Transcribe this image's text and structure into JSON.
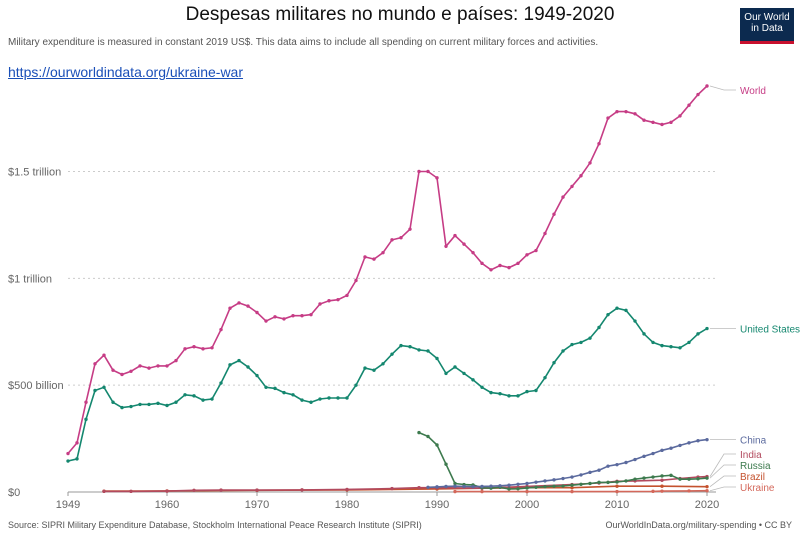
{
  "title": "Despesas militares no mundo e países: 1949-2020",
  "subtitle": "Military expenditure is measured in constant 2019 US$. This data aims to include all spending on current military forces and activities.",
  "link": "https://ourworldindata.org/ukraine-war",
  "logo": {
    "line1": "Our World",
    "line2": "in Data"
  },
  "source": "Source: SIPRI Military Expenditure Database, Stockholm International Peace Research Institute (SIPRI)",
  "site": "OurWorldInData.org/military-spending • CC BY",
  "colors": {
    "World": "#c63c85",
    "United States": "#14876f",
    "China": "#5b6a9e",
    "India": "#b24a5e",
    "Russia": "#3d7a4e",
    "Brazil": "#c4522e",
    "Ukraine": "#d4685b"
  },
  "chart_data": {
    "type": "line",
    "title": "Despesas militares no mundo e países: 1949-2020",
    "xlim": [
      1949,
      2020
    ],
    "ylim": [
      0,
      1900
    ],
    "y_unit": "billion constant 2019 US$",
    "x_ticks": [
      {
        "value": 1949,
        "label": "1949"
      },
      {
        "value": 1960,
        "label": "1960"
      },
      {
        "value": 1970,
        "label": "1970"
      },
      {
        "value": 1980,
        "label": "1980"
      },
      {
        "value": 1990,
        "label": "1990"
      },
      {
        "value": 2000,
        "label": "2000"
      },
      {
        "value": 2010,
        "label": "2010"
      },
      {
        "value": 2020,
        "label": "2020"
      }
    ],
    "y_ticks": [
      {
        "value": 0,
        "label": "$0"
      },
      {
        "value": 500,
        "label": "$500 billion"
      },
      {
        "value": 1000,
        "label": "$1 trillion"
      },
      {
        "value": 1500,
        "label": "$1.5 trillion"
      }
    ],
    "grid": "horizontal dotted",
    "series": [
      {
        "name": "World",
        "points": [
          [
            1949,
            180
          ],
          [
            1950,
            230
          ],
          [
            1951,
            420
          ],
          [
            1952,
            600
          ],
          [
            1953,
            640
          ],
          [
            1954,
            570
          ],
          [
            1955,
            550
          ],
          [
            1956,
            565
          ],
          [
            1957,
            590
          ],
          [
            1958,
            580
          ],
          [
            1959,
            590
          ],
          [
            1960,
            590
          ],
          [
            1961,
            615
          ],
          [
            1962,
            670
          ],
          [
            1963,
            680
          ],
          [
            1964,
            670
          ],
          [
            1965,
            675
          ],
          [
            1966,
            760
          ],
          [
            1967,
            860
          ],
          [
            1968,
            885
          ],
          [
            1969,
            870
          ],
          [
            1970,
            840
          ],
          [
            1971,
            800
          ],
          [
            1972,
            820
          ],
          [
            1973,
            810
          ],
          [
            1974,
            825
          ],
          [
            1975,
            825
          ],
          [
            1976,
            830
          ],
          [
            1977,
            880
          ],
          [
            1978,
            895
          ],
          [
            1979,
            900
          ],
          [
            1980,
            920
          ],
          [
            1981,
            990
          ],
          [
            1982,
            1100
          ],
          [
            1983,
            1090
          ],
          [
            1984,
            1120
          ],
          [
            1985,
            1180
          ],
          [
            1986,
            1190
          ],
          [
            1987,
            1230
          ],
          [
            1988,
            1500
          ],
          [
            1989,
            1500
          ],
          [
            1990,
            1470
          ],
          [
            1991,
            1150
          ],
          [
            1992,
            1200
          ],
          [
            1993,
            1160
          ],
          [
            1994,
            1120
          ],
          [
            1995,
            1070
          ],
          [
            1996,
            1040
          ],
          [
            1997,
            1060
          ],
          [
            1998,
            1050
          ],
          [
            1999,
            1070
          ],
          [
            2000,
            1110
          ],
          [
            2001,
            1130
          ],
          [
            2002,
            1210
          ],
          [
            2003,
            1300
          ],
          [
            2004,
            1380
          ],
          [
            2005,
            1430
          ],
          [
            2006,
            1480
          ],
          [
            2007,
            1540
          ],
          [
            2008,
            1630
          ],
          [
            2009,
            1750
          ],
          [
            2010,
            1780
          ],
          [
            2011,
            1780
          ],
          [
            2012,
            1770
          ],
          [
            2013,
            1740
          ],
          [
            2014,
            1730
          ],
          [
            2015,
            1720
          ],
          [
            2016,
            1730
          ],
          [
            2017,
            1760
          ],
          [
            2018,
            1810
          ],
          [
            2019,
            1860
          ],
          [
            2020,
            1900
          ]
        ]
      },
      {
        "name": "United States",
        "points": [
          [
            1949,
            145
          ],
          [
            1950,
            155
          ],
          [
            1951,
            340
          ],
          [
            1952,
            475
          ],
          [
            1953,
            490
          ],
          [
            1954,
            420
          ],
          [
            1955,
            395
          ],
          [
            1956,
            400
          ],
          [
            1957,
            410
          ],
          [
            1958,
            410
          ],
          [
            1959,
            415
          ],
          [
            1960,
            405
          ],
          [
            1961,
            420
          ],
          [
            1962,
            455
          ],
          [
            1963,
            450
          ],
          [
            1964,
            430
          ],
          [
            1965,
            435
          ],
          [
            1966,
            510
          ],
          [
            1967,
            595
          ],
          [
            1968,
            615
          ],
          [
            1969,
            585
          ],
          [
            1970,
            545
          ],
          [
            1971,
            490
          ],
          [
            1972,
            485
          ],
          [
            1973,
            465
          ],
          [
            1974,
            455
          ],
          [
            1975,
            430
          ],
          [
            1976,
            420
          ],
          [
            1977,
            435
          ],
          [
            1978,
            440
          ],
          [
            1979,
            440
          ],
          [
            1980,
            440
          ],
          [
            1981,
            500
          ],
          [
            1982,
            580
          ],
          [
            1983,
            570
          ],
          [
            1984,
            600
          ],
          [
            1985,
            645
          ],
          [
            1986,
            685
          ],
          [
            1987,
            680
          ],
          [
            1988,
            665
          ],
          [
            1989,
            660
          ],
          [
            1990,
            625
          ],
          [
            1991,
            555
          ],
          [
            1992,
            585
          ],
          [
            1993,
            555
          ],
          [
            1994,
            525
          ],
          [
            1995,
            490
          ],
          [
            1996,
            465
          ],
          [
            1997,
            460
          ],
          [
            1998,
            450
          ],
          [
            1999,
            450
          ],
          [
            2000,
            470
          ],
          [
            2001,
            475
          ],
          [
            2002,
            535
          ],
          [
            2003,
            605
          ],
          [
            2004,
            660
          ],
          [
            2005,
            690
          ],
          [
            2006,
            700
          ],
          [
            2007,
            720
          ],
          [
            2008,
            770
          ],
          [
            2009,
            830
          ],
          [
            2010,
            860
          ],
          [
            2011,
            850
          ],
          [
            2012,
            800
          ],
          [
            2013,
            740
          ],
          [
            2014,
            700
          ],
          [
            2015,
            685
          ],
          [
            2016,
            680
          ],
          [
            2017,
            675
          ],
          [
            2018,
            700
          ],
          [
            2019,
            740
          ],
          [
            2020,
            765
          ]
        ]
      },
      {
        "name": "China",
        "points": [
          [
            1989,
            22
          ],
          [
            1990,
            24
          ],
          [
            1991,
            26
          ],
          [
            1992,
            27
          ],
          [
            1993,
            26
          ],
          [
            1994,
            25
          ],
          [
            1995,
            26
          ],
          [
            1996,
            27
          ],
          [
            1997,
            29
          ],
          [
            1998,
            32
          ],
          [
            1999,
            36
          ],
          [
            2000,
            40
          ],
          [
            2001,
            46
          ],
          [
            2002,
            52
          ],
          [
            2003,
            57
          ],
          [
            2004,
            63
          ],
          [
            2005,
            70
          ],
          [
            2006,
            80
          ],
          [
            2007,
            92
          ],
          [
            2008,
            102
          ],
          [
            2009,
            121
          ],
          [
            2010,
            128
          ],
          [
            2011,
            138
          ],
          [
            2012,
            152
          ],
          [
            2013,
            167
          ],
          [
            2014,
            180
          ],
          [
            2015,
            195
          ],
          [
            2016,
            205
          ],
          [
            2017,
            218
          ],
          [
            2018,
            230
          ],
          [
            2019,
            240
          ],
          [
            2020,
            245
          ]
        ]
      },
      {
        "name": "India",
        "points": [
          [
            1953,
            3
          ],
          [
            1956,
            3
          ],
          [
            1960,
            4
          ],
          [
            1963,
            8
          ],
          [
            1966,
            9
          ],
          [
            1970,
            9
          ],
          [
            1975,
            10
          ],
          [
            1980,
            12
          ],
          [
            1985,
            16
          ],
          [
            1988,
            20
          ],
          [
            1990,
            20
          ],
          [
            1995,
            18
          ],
          [
            2000,
            26
          ],
          [
            2005,
            35
          ],
          [
            2008,
            42
          ],
          [
            2010,
            50
          ],
          [
            2012,
            52
          ],
          [
            2015,
            55
          ],
          [
            2017,
            63
          ],
          [
            2019,
            70
          ],
          [
            2020,
            72
          ]
        ]
      },
      {
        "name": "Russia",
        "points": [
          [
            1988,
            278
          ],
          [
            1989,
            260
          ],
          [
            1990,
            220
          ],
          [
            1991,
            130
          ],
          [
            1992,
            40
          ],
          [
            1993,
            35
          ],
          [
            1994,
            33
          ],
          [
            1995,
            20
          ],
          [
            1996,
            18
          ],
          [
            1997,
            22
          ],
          [
            1998,
            14
          ],
          [
            1999,
            15
          ],
          [
            2000,
            19
          ],
          [
            2001,
            22
          ],
          [
            2002,
            25
          ],
          [
            2003,
            27
          ],
          [
            2004,
            28
          ],
          [
            2005,
            32
          ],
          [
            2006,
            36
          ],
          [
            2007,
            40
          ],
          [
            2008,
            45
          ],
          [
            2009,
            45
          ],
          [
            2010,
            47
          ],
          [
            2011,
            52
          ],
          [
            2012,
            60
          ],
          [
            2013,
            65
          ],
          [
            2014,
            70
          ],
          [
            2015,
            75
          ],
          [
            2016,
            78
          ],
          [
            2017,
            60
          ],
          [
            2018,
            60
          ],
          [
            2019,
            62
          ],
          [
            2020,
            65
          ]
        ]
      },
      {
        "name": "Brazil",
        "points": [
          [
            1953,
            4
          ],
          [
            1960,
            5
          ],
          [
            1970,
            8
          ],
          [
            1980,
            10
          ],
          [
            1990,
            14
          ],
          [
            1995,
            18
          ],
          [
            2000,
            20
          ],
          [
            2005,
            20
          ],
          [
            2010,
            27
          ],
          [
            2015,
            27
          ],
          [
            2020,
            25
          ]
        ]
      },
      {
        "name": "Ukraine",
        "points": [
          [
            1992,
            2
          ],
          [
            1995,
            2
          ],
          [
            2000,
            2
          ],
          [
            2005,
            2
          ],
          [
            2010,
            2
          ],
          [
            2014,
            3
          ],
          [
            2015,
            4
          ],
          [
            2018,
            5
          ],
          [
            2020,
            6
          ]
        ]
      }
    ],
    "legend": "line-end labels on right"
  }
}
